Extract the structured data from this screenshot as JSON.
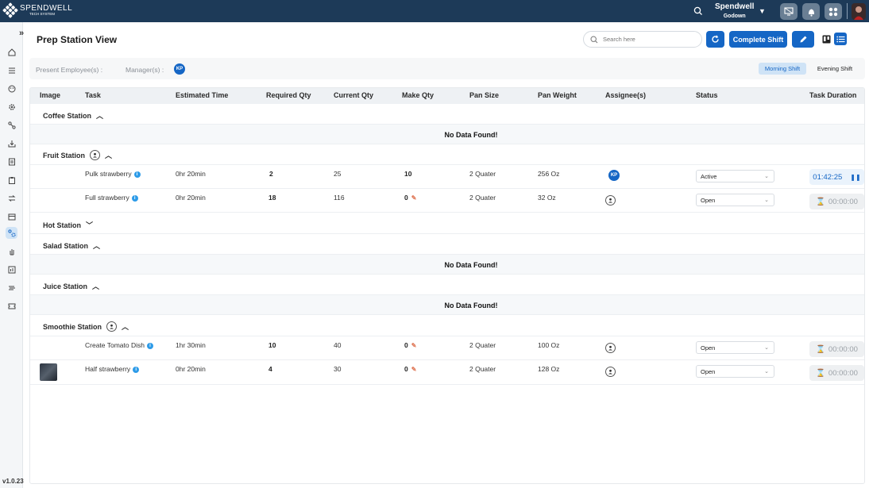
{
  "topbar": {
    "logo_name": "SPENDWELL",
    "logo_sub": "TECH SYSTEM",
    "company_name": "Spendwell",
    "company_location": "Godown",
    "icons": [
      "search-icon",
      "caret-down-icon",
      "monitor-icon",
      "bell-icon",
      "grid-icon",
      "avatar"
    ]
  },
  "sidebar": {
    "version": "v1.0.23",
    "items": [
      "home-icon",
      "menu-icon",
      "palette-icon",
      "gear-cog-icon",
      "nodes-icon",
      "download-icon",
      "document-icon",
      "clipboard-icon",
      "transfer-icon",
      "calendar-icon",
      "prep-station-icon",
      "hand-icon",
      "report-icon",
      "truck-icon",
      "ticket-icon"
    ],
    "active_index": 10
  },
  "page": {
    "title": "Prep Station View",
    "search_placeholder": "Search here",
    "complete_shift_label": "Complete Shift"
  },
  "info_bar": {
    "present_employees_label": "Present Employee(s) :",
    "managers_label": "Manager(s) :",
    "manager_initials": "KP",
    "shift_morning": "Morning Shift",
    "shift_evening": "Evening Shift"
  },
  "table": {
    "headers": [
      "Image",
      "Task",
      "Estimated Time",
      "Required Qty",
      "Current Qty",
      "Make Qty",
      "Pan Size",
      "Pan Weight",
      "Assignee(s)",
      "Status",
      "Task Duration"
    ],
    "no_data_text": "No Data Found!",
    "sections": [
      {
        "name": "Coffee Station",
        "expanded": true,
        "assign_icon": false,
        "rows": []
      },
      {
        "name": "Fruit Station",
        "expanded": true,
        "assign_icon": true,
        "rows": [
          {
            "task": "Pulk strawberry",
            "est": "0hr 20min",
            "req": "2",
            "cur": "25",
            "make": "10",
            "make_editable": false,
            "pan_size": "2 Quater",
            "pan_weight": "256 Oz",
            "assignee": "KP",
            "status": "Active",
            "duration": "01:42:25",
            "timer_active": true
          },
          {
            "task": "Full strawberry",
            "est": "0hr 20min",
            "req": "18",
            "cur": "116",
            "make": "0",
            "make_editable": true,
            "pan_size": "2 Quater",
            "pan_weight": "32 Oz",
            "assignee": "",
            "status": "Open",
            "duration": "00:00:00",
            "timer_active": false
          }
        ]
      },
      {
        "name": "Hot Station",
        "expanded": false,
        "assign_icon": false,
        "rows": []
      },
      {
        "name": "Salad Station",
        "expanded": true,
        "assign_icon": false,
        "rows": []
      },
      {
        "name": "Juice Station",
        "expanded": true,
        "assign_icon": false,
        "rows": []
      },
      {
        "name": "Smoothie Station",
        "expanded": true,
        "assign_icon": true,
        "rows": [
          {
            "task": "Create Tomato Dish",
            "est": "1hr 30min",
            "req": "10",
            "cur": "40",
            "make": "0",
            "make_editable": true,
            "pan_size": "2 Quater",
            "pan_weight": "100 Oz",
            "assignee": "",
            "status": "Open",
            "duration": "00:00:00",
            "timer_active": false
          },
          {
            "task": "Half strawberry",
            "est": "0hr 20min",
            "req": "4",
            "cur": "30",
            "make": "0",
            "make_editable": true,
            "pan_size": "2 Quater",
            "pan_weight": "128 Oz",
            "assignee": "",
            "status": "Open",
            "duration": "00:00:00",
            "timer_active": false,
            "has_image": true
          }
        ]
      }
    ]
  },
  "colors": {
    "topbar": "#1d3a58",
    "accent": "#1566c5",
    "highlight": "#cfe3f6"
  }
}
